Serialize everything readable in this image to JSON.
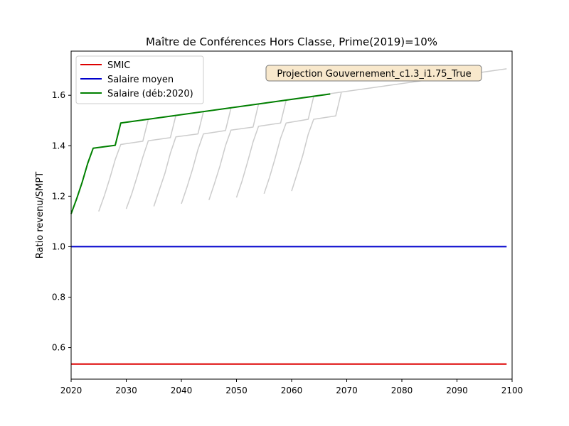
{
  "chart_data": {
    "type": "line",
    "title": "Maître de Conférences Hors Classe, Prime(2019)=10%",
    "xlabel": "",
    "ylabel": "Ratio revenu/SMPT",
    "xlim": [
      2020,
      2100
    ],
    "ylim": [
      0.475,
      1.775
    ],
    "xticks": [
      2020,
      2030,
      2040,
      2050,
      2060,
      2070,
      2080,
      2090,
      2100
    ],
    "xtick_labels": [
      "2020",
      "2030",
      "2040",
      "2050",
      "2060",
      "2070",
      "2080",
      "2090",
      "2100"
    ],
    "yticks": [
      0.6,
      0.8,
      1.0,
      1.2,
      1.4,
      1.6
    ],
    "ytick_labels": [
      "0.6",
      "0.8",
      "1.0",
      "1.2",
      "1.4",
      "1.6"
    ],
    "grid": false,
    "legend_position": "top-left",
    "annotation": "Projection Gouvernement_c1.3_i1.75_True",
    "series": [
      {
        "name": "SMIC",
        "color": "#dd0000",
        "points": [
          [
            2020,
            0.535
          ],
          [
            2099,
            0.535
          ]
        ]
      },
      {
        "name": "Salaire moyen",
        "color": "#0000cc",
        "points": [
          [
            2020,
            1.0
          ],
          [
            2099,
            1.0
          ]
        ]
      },
      {
        "name": "Salaire (déb:2020)",
        "color": "#008000",
        "points": [
          [
            2020,
            1.13
          ],
          [
            2021,
            1.19
          ],
          [
            2022,
            1.255
          ],
          [
            2023,
            1.33
          ],
          [
            2024,
            1.39
          ],
          [
            2028,
            1.402
          ],
          [
            2029,
            1.49
          ],
          [
            2067,
            1.605
          ]
        ]
      }
    ],
    "background_series": {
      "color": "#cccccc",
      "lines": [
        [
          [
            2025,
            1.14
          ],
          [
            2026,
            1.2
          ],
          [
            2027,
            1.27
          ],
          [
            2028,
            1.345
          ],
          [
            2029,
            1.405
          ],
          [
            2033,
            1.418
          ],
          [
            2034,
            1.505
          ],
          [
            2099,
            1.705
          ]
        ],
        [
          [
            2030,
            1.15
          ],
          [
            2031,
            1.21
          ],
          [
            2032,
            1.28
          ],
          [
            2033,
            1.355
          ],
          [
            2034,
            1.42
          ],
          [
            2038,
            1.432
          ],
          [
            2039,
            1.52
          ]
        ],
        [
          [
            2035,
            1.16
          ],
          [
            2036,
            1.225
          ],
          [
            2037,
            1.29
          ],
          [
            2038,
            1.37
          ],
          [
            2039,
            1.435
          ],
          [
            2043,
            1.447
          ],
          [
            2044,
            1.535
          ]
        ],
        [
          [
            2040,
            1.17
          ],
          [
            2041,
            1.235
          ],
          [
            2042,
            1.305
          ],
          [
            2043,
            1.385
          ],
          [
            2044,
            1.447
          ],
          [
            2048,
            1.46
          ],
          [
            2049,
            1.55
          ]
        ],
        [
          [
            2045,
            1.185
          ],
          [
            2046,
            1.25
          ],
          [
            2047,
            1.32
          ],
          [
            2048,
            1.4
          ],
          [
            2049,
            1.462
          ],
          [
            2053,
            1.474
          ],
          [
            2054,
            1.565
          ]
        ],
        [
          [
            2050,
            1.195
          ],
          [
            2051,
            1.26
          ],
          [
            2052,
            1.335
          ],
          [
            2053,
            1.415
          ],
          [
            2054,
            1.477
          ],
          [
            2058,
            1.49
          ],
          [
            2059,
            1.58
          ]
        ],
        [
          [
            2055,
            1.21
          ],
          [
            2056,
            1.275
          ],
          [
            2057,
            1.35
          ],
          [
            2058,
            1.43
          ],
          [
            2059,
            1.49
          ],
          [
            2063,
            1.505
          ],
          [
            2064,
            1.595
          ]
        ],
        [
          [
            2060,
            1.22
          ],
          [
            2061,
            1.29
          ],
          [
            2062,
            1.36
          ],
          [
            2063,
            1.445
          ],
          [
            2064,
            1.505
          ],
          [
            2068,
            1.518
          ],
          [
            2069,
            1.61
          ]
        ]
      ]
    }
  }
}
